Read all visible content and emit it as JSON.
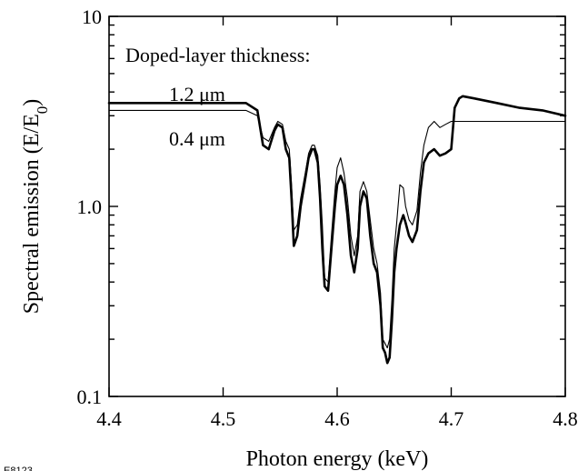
{
  "figure_id": "E8123",
  "chart_data": {
    "type": "line",
    "title": "",
    "xlabel": "Photon energy (keV)",
    "ylabel": "Spectral emission (E/E",
    "ylabel_sub": "0",
    "ylabel_close": ")",
    "xlim": [
      4.4,
      4.8
    ],
    "ylim": [
      0.1,
      10
    ],
    "yscale": "log",
    "grid": false,
    "x_ticks": [
      4.4,
      4.5,
      4.6,
      4.7,
      4.8
    ],
    "x_tick_labels": [
      "4.4",
      "4.5",
      "4.6",
      "4.7",
      "4.8"
    ],
    "y_ticks": [
      0.1,
      1.0,
      10
    ],
    "y_tick_labels": [
      "0.1",
      "1.0",
      "10"
    ],
    "y_minor_ticks": [
      0.2,
      0.3,
      0.4,
      0.5,
      0.6,
      0.7,
      0.8,
      0.9,
      2,
      3,
      4,
      5,
      6,
      7,
      8,
      9
    ],
    "legend_title": "Doped-layer thickness:",
    "series": [
      {
        "name": "1.2 μm",
        "line_width": 2.6,
        "x": [
          4.4,
          4.52,
          4.53,
          4.535,
          4.54,
          4.545,
          4.548,
          4.552,
          4.555,
          4.558,
          4.56,
          4.562,
          4.565,
          4.568,
          4.572,
          4.575,
          4.578,
          4.58,
          4.583,
          4.585,
          4.587,
          4.589,
          4.592,
          4.595,
          4.598,
          4.6,
          4.603,
          4.606,
          4.609,
          4.612,
          4.615,
          4.618,
          4.62,
          4.623,
          4.626,
          4.629,
          4.632,
          4.635,
          4.638,
          4.64,
          4.642,
          4.644,
          4.646,
          4.648,
          4.65,
          4.652,
          4.655,
          4.658,
          4.66,
          4.663,
          4.666,
          4.67,
          4.673,
          4.676,
          4.68,
          4.685,
          4.69,
          4.695,
          4.7,
          4.703,
          4.707,
          4.71,
          4.72,
          4.74,
          4.76,
          4.78,
          4.8
        ],
        "y": [
          3.5,
          3.5,
          3.2,
          2.1,
          2.0,
          2.5,
          2.7,
          2.6,
          2.0,
          1.8,
          1.1,
          0.62,
          0.7,
          1.0,
          1.4,
          1.8,
          2.0,
          2.0,
          1.7,
          1.1,
          0.6,
          0.38,
          0.36,
          0.6,
          1.0,
          1.3,
          1.45,
          1.3,
          0.9,
          0.55,
          0.45,
          0.6,
          1.0,
          1.2,
          1.1,
          0.7,
          0.5,
          0.45,
          0.3,
          0.18,
          0.17,
          0.15,
          0.16,
          0.25,
          0.45,
          0.6,
          0.8,
          0.9,
          0.82,
          0.7,
          0.65,
          0.75,
          1.2,
          1.7,
          1.9,
          2.0,
          1.85,
          1.9,
          2.0,
          3.3,
          3.7,
          3.8,
          3.7,
          3.5,
          3.3,
          3.2,
          3.0
        ]
      },
      {
        "name": "0.4 μm",
        "line_width": 1.1,
        "x": [
          4.4,
          4.52,
          4.53,
          4.535,
          4.54,
          4.545,
          4.548,
          4.552,
          4.555,
          4.558,
          4.56,
          4.562,
          4.565,
          4.568,
          4.572,
          4.575,
          4.578,
          4.58,
          4.583,
          4.585,
          4.587,
          4.589,
          4.592,
          4.595,
          4.598,
          4.6,
          4.603,
          4.606,
          4.609,
          4.612,
          4.615,
          4.618,
          4.62,
          4.623,
          4.626,
          4.629,
          4.632,
          4.635,
          4.638,
          4.64,
          4.642,
          4.644,
          4.646,
          4.648,
          4.65,
          4.652,
          4.655,
          4.658,
          4.66,
          4.663,
          4.666,
          4.67,
          4.673,
          4.676,
          4.68,
          4.685,
          4.69,
          4.695,
          4.7,
          4.703,
          4.707,
          4.71,
          4.72,
          4.74,
          4.76,
          4.78,
          4.8
        ],
        "y": [
          3.2,
          3.2,
          3.0,
          2.3,
          2.2,
          2.6,
          2.8,
          2.7,
          2.2,
          2.0,
          1.3,
          0.75,
          0.8,
          1.1,
          1.5,
          1.9,
          2.1,
          2.1,
          1.85,
          1.3,
          0.8,
          0.42,
          0.4,
          0.7,
          1.2,
          1.6,
          1.8,
          1.5,
          1.1,
          0.7,
          0.55,
          0.7,
          1.2,
          1.35,
          1.2,
          0.85,
          0.6,
          0.5,
          0.35,
          0.2,
          0.19,
          0.18,
          0.2,
          0.32,
          0.6,
          0.8,
          1.3,
          1.25,
          1.0,
          0.85,
          0.8,
          0.95,
          1.5,
          2.1,
          2.6,
          2.8,
          2.6,
          2.7,
          2.8,
          2.8,
          2.8,
          2.8,
          2.8,
          2.8,
          2.8,
          2.8,
          2.8
        ]
      }
    ]
  }
}
